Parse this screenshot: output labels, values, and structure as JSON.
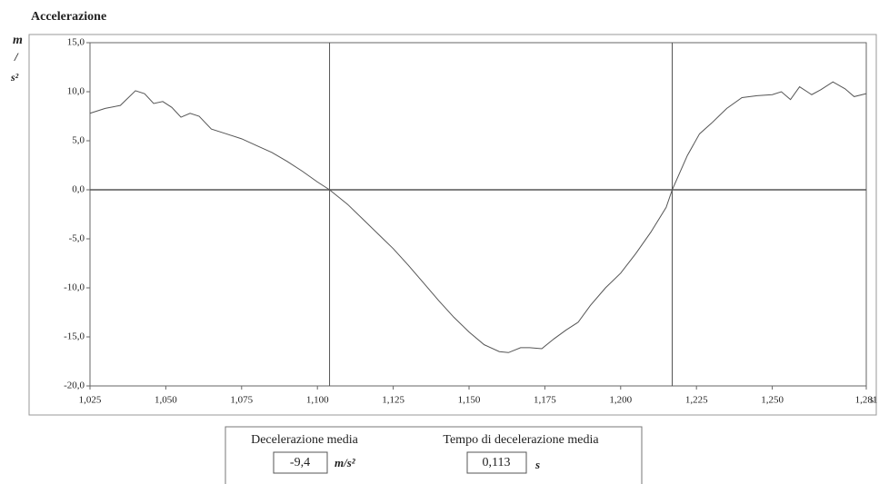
{
  "chart_data": {
    "type": "line",
    "title": "Accelerazione",
    "y_unit_lines": [
      "m",
      "/",
      "s²"
    ],
    "x_unit": "s",
    "color": "#555555",
    "x": [
      1.025,
      1.03,
      1.035,
      1.04,
      1.043,
      1.046,
      1.049,
      1.052,
      1.055,
      1.058,
      1.061,
      1.065,
      1.07,
      1.075,
      1.08,
      1.085,
      1.09,
      1.095,
      1.1,
      1.104,
      1.11,
      1.115,
      1.12,
      1.125,
      1.13,
      1.135,
      1.14,
      1.145,
      1.15,
      1.155,
      1.16,
      1.163,
      1.167,
      1.17,
      1.174,
      1.178,
      1.182,
      1.186,
      1.19,
      1.195,
      1.2,
      1.205,
      1.21,
      1.215,
      1.217,
      1.222,
      1.226,
      1.23,
      1.235,
      1.24,
      1.245,
      1.25,
      1.253,
      1.256,
      1.259,
      1.263,
      1.266,
      1.27,
      1.274,
      1.277,
      1.281
    ],
    "values": [
      7.8,
      8.3,
      8.6,
      10.1,
      9.8,
      8.8,
      9.0,
      8.4,
      7.4,
      7.8,
      7.5,
      6.2,
      5.7,
      5.2,
      4.5,
      3.8,
      2.9,
      1.9,
      0.8,
      0.0,
      -1.5,
      -3.0,
      -4.5,
      -6.0,
      -7.7,
      -9.5,
      -11.3,
      -13.0,
      -14.5,
      -15.8,
      -16.5,
      -16.6,
      -16.1,
      -16.1,
      -16.2,
      -15.2,
      -14.3,
      -13.5,
      -11.8,
      -10.0,
      -8.5,
      -6.5,
      -4.3,
      -1.8,
      0.0,
      3.5,
      5.7,
      6.8,
      8.3,
      9.4,
      9.6,
      9.7,
      10.0,
      9.2,
      10.5,
      9.7,
      10.2,
      11.0,
      10.3,
      9.5,
      9.8
    ],
    "xlim": [
      1.025,
      1.281
    ],
    "xticks": [
      {
        "value": 1.025,
        "label": "1,025"
      },
      {
        "value": 1.05,
        "label": "1,050"
      },
      {
        "value": 1.075,
        "label": "1,075"
      },
      {
        "value": 1.1,
        "label": "1,100"
      },
      {
        "value": 1.125,
        "label": "1,125"
      },
      {
        "value": 1.15,
        "label": "1,150"
      },
      {
        "value": 1.175,
        "label": "1,175"
      },
      {
        "value": 1.2,
        "label": "1,200"
      },
      {
        "value": 1.225,
        "label": "1,225"
      },
      {
        "value": 1.25,
        "label": "1,250"
      },
      {
        "value": 1.281,
        "label": "1,281"
      }
    ],
    "ylim": [
      -20,
      15
    ],
    "yticks": [
      {
        "value": -20,
        "label": "-20,0"
      },
      {
        "value": -15,
        "label": "-15,0"
      },
      {
        "value": -10,
        "label": "-10,0"
      },
      {
        "value": -5,
        "label": "-5,0"
      },
      {
        "value": 0,
        "label": "0,0"
      },
      {
        "value": 5,
        "label": "5,0"
      },
      {
        "value": 10,
        "label": "10,0"
      },
      {
        "value": 15,
        "label": "15,0"
      }
    ],
    "grid": false,
    "hlines": [
      0
    ],
    "vlines": [
      1.104,
      1.217
    ]
  },
  "panel": {
    "fields": [
      {
        "label": "Decelerazione media",
        "value": {
          "value": -9.4,
          "label": "-9,4"
        },
        "unit": "m/s²"
      },
      {
        "label": "Tempo di decelerazione media",
        "value": {
          "value": 0.113,
          "label": "0,113"
        },
        "unit": "s"
      }
    ]
  }
}
